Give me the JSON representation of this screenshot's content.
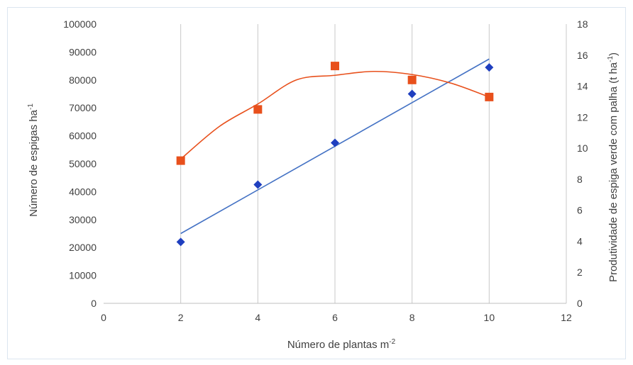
{
  "chart_data": {
    "type": "scatter",
    "xlabel": "Número de plantas m",
    "xlabel_sup": "-2",
    "ylabel_left": "Número de espigas ha",
    "ylabel_left_sup": "-1",
    "ylabel_right": "Produtividade de espiga verde com palha (t ha",
    "ylabel_right_sup": "-1",
    "ylabel_right_end": ")",
    "xlim": [
      0,
      12
    ],
    "xticks": [
      0,
      2,
      4,
      6,
      8,
      10,
      12
    ],
    "ylim_left": [
      0,
      100000
    ],
    "yticks_left": [
      0,
      10000,
      20000,
      30000,
      40000,
      50000,
      60000,
      70000,
      80000,
      90000,
      100000
    ],
    "ylim_right": [
      0,
      18
    ],
    "yticks_right": [
      0,
      2,
      4,
      6,
      8,
      10,
      12,
      14,
      16,
      18
    ],
    "grid": "vertical",
    "series": [
      {
        "axis": "left",
        "marker": "diamond",
        "color": "#1f3fbf",
        "x": [
          2,
          4,
          6,
          8,
          10
        ],
        "y": [
          22000,
          42500,
          57500,
          75000,
          84500
        ],
        "trendline": {
          "kind": "linear",
          "color": "#4472c4",
          "x": [
            2,
            10
          ],
          "y": [
            25000,
            87500
          ]
        }
      },
      {
        "axis": "right",
        "marker": "square",
        "color": "#e8501c",
        "x": [
          2,
          4,
          6,
          8,
          10
        ],
        "y": [
          9.2,
          12.5,
          15.3,
          14.4,
          13.3
        ],
        "trendline": {
          "kind": "quadratic",
          "color": "#e8501c",
          "x": [
            2,
            3,
            4,
            5,
            6,
            7,
            8,
            9,
            10
          ],
          "y": [
            9.3,
            11.4,
            12.85,
            14.4,
            14.7,
            14.95,
            14.75,
            14.2,
            13.3
          ]
        }
      }
    ]
  }
}
